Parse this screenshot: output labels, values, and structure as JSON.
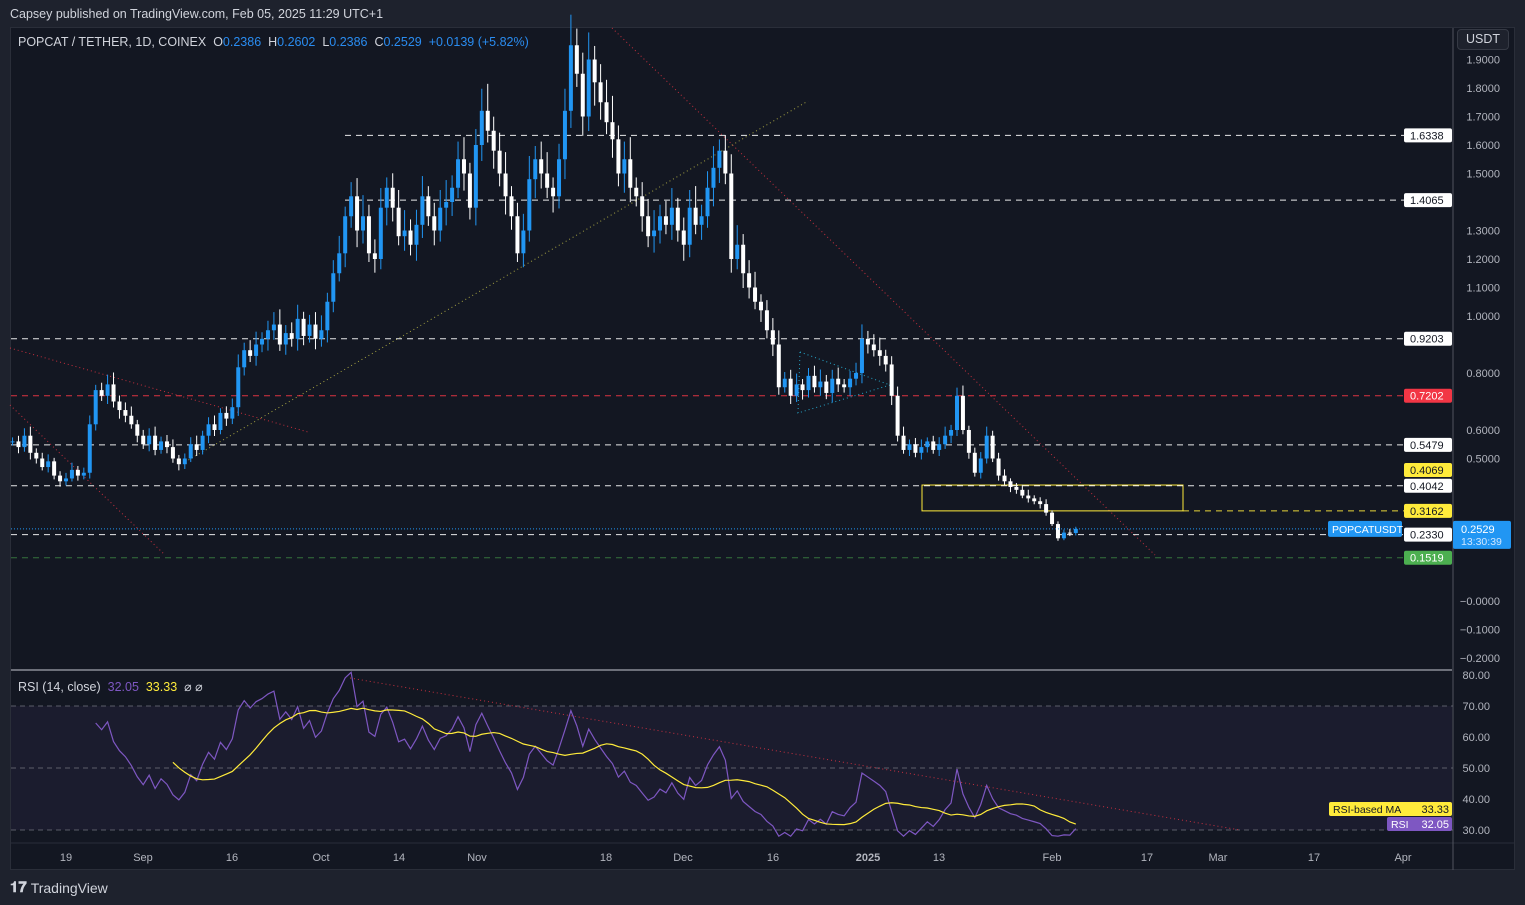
{
  "header": {
    "published": "Capsey published on TradingView.com, Feb 05, 2025 11:29 UTC+1"
  },
  "legend": {
    "symbol": "POPCAT / TETHER, 1D, COINEX",
    "o_label": "O",
    "o": "0.2386",
    "h_label": "H",
    "h": "0.2602",
    "l_label": "L",
    "l": "0.2386",
    "c_label": "C",
    "c": "0.2529",
    "change": "+0.0139 (+5.82%)"
  },
  "currency_button": "USDT",
  "rsi_legend": {
    "title": "RSI (14, close)",
    "rsi": "32.05",
    "ma": "33.33",
    "icons": "⌀ ⌀"
  },
  "price_axis": {
    "ticks": [
      "1.9000",
      "1.8000",
      "1.7000",
      "1.6000",
      "1.5000",
      "1.3000",
      "1.2000",
      "1.1000",
      "1.0000",
      "0.8000",
      "0.6000",
      "0.5000",
      "−0.0000",
      "−0.1000",
      "−0.2000"
    ],
    "values": [
      1.9,
      1.8,
      1.7,
      1.6,
      1.5,
      1.3,
      1.2,
      1.1,
      1.0,
      0.8,
      0.6,
      0.5,
      0,
      -0.1,
      -0.2
    ]
  },
  "levels": [
    {
      "value": "1.6338",
      "color": "#ffffff",
      "text": "#131722"
    },
    {
      "value": "1.4065",
      "color": "#ffffff",
      "text": "#131722"
    },
    {
      "value": "0.9203",
      "color": "#ffffff",
      "text": "#131722"
    },
    {
      "value": "0.7202",
      "color": "#f23645",
      "text": "#ffffff"
    },
    {
      "value": "0.5479",
      "color": "#ffffff",
      "text": "#131722"
    },
    {
      "value": "0.4042",
      "color": "#ffffff",
      "text": "#131722"
    },
    {
      "value": "0.3162",
      "color": "#ffeb3b",
      "text": "#131722"
    },
    {
      "value": "0.2330",
      "color": "#ffffff",
      "text": "#131722"
    },
    {
      "value": "0.1519",
      "color": "#4caf50",
      "text": "#ffffff"
    }
  ],
  "box_top_label": {
    "value": "0.4069",
    "color": "#ffeb3b"
  },
  "last_price": {
    "symbol": "POPCATUSDT",
    "price": "0.2529",
    "countdown": "13:30:39",
    "color": "#2196f3"
  },
  "rsi_axis": {
    "ticks": [
      "80.00",
      "70.00",
      "60.00",
      "50.00",
      "40.00",
      "30.00"
    ],
    "values": [
      80,
      70,
      60,
      50,
      40,
      30
    ]
  },
  "rsi_tags": {
    "ma_label": "RSI-based MA",
    "ma_value": "33.33",
    "rsi_label": "RSI",
    "rsi_value": "32.05",
    "ma_color": "#ffeb3b",
    "rsi_color": "#7e57c2"
  },
  "time_axis": [
    "19",
    "Sep",
    "16",
    "Oct",
    "14",
    "Nov",
    "18",
    "Dec",
    "16",
    "2025",
    "13",
    "Feb",
    "17",
    "Mar",
    "17",
    "Apr"
  ],
  "colors": {
    "up": "#2196f3",
    "down": "#ffffff",
    "background": "#131722"
  },
  "series": {
    "interval": "1D",
    "close": [
      0.56,
      0.54,
      0.58,
      0.52,
      0.5,
      0.47,
      0.49,
      0.44,
      0.42,
      0.43,
      0.46,
      0.44,
      0.45,
      0.62,
      0.74,
      0.72,
      0.76,
      0.7,
      0.67,
      0.65,
      0.62,
      0.58,
      0.55,
      0.58,
      0.53,
      0.56,
      0.54,
      0.5,
      0.48,
      0.5,
      0.55,
      0.53,
      0.58,
      0.62,
      0.6,
      0.66,
      0.64,
      0.68,
      0.82,
      0.88,
      0.86,
      0.9,
      0.92,
      0.95,
      0.97,
      0.9,
      0.94,
      0.92,
      0.99,
      0.93,
      0.97,
      0.92,
      0.95,
      1.05,
      1.15,
      1.22,
      1.35,
      1.42,
      1.3,
      1.35,
      1.22,
      1.2,
      1.38,
      1.45,
      1.38,
      1.28,
      1.3,
      1.25,
      1.32,
      1.42,
      1.35,
      1.3,
      1.38,
      1.4,
      1.45,
      1.55,
      1.5,
      1.38,
      1.6,
      1.72,
      1.65,
      1.58,
      1.5,
      1.42,
      1.35,
      1.22,
      1.3,
      1.48,
      1.55,
      1.5,
      1.45,
      1.42,
      1.55,
      1.72,
      1.95,
      1.85,
      1.7,
      1.9,
      1.82,
      1.75,
      1.68,
      1.62,
      1.5,
      1.55,
      1.45,
      1.42,
      1.35,
      1.28,
      1.3,
      1.35,
      1.32,
      1.38,
      1.3,
      1.25,
      1.38,
      1.32,
      1.35,
      1.45,
      1.52,
      1.58,
      1.5,
      1.2,
      1.25,
      1.15,
      1.1,
      1.05,
      1.02,
      0.95,
      0.9,
      0.75,
      0.78,
      0.72,
      0.76,
      0.74,
      0.79,
      0.75,
      0.77,
      0.73,
      0.78,
      0.76,
      0.75,
      0.78,
      0.8,
      0.92,
      0.9,
      0.88,
      0.86,
      0.83,
      0.72,
      0.58,
      0.53,
      0.55,
      0.52,
      0.54,
      0.56,
      0.53,
      0.55,
      0.58,
      0.6,
      0.72,
      0.6,
      0.52,
      0.45,
      0.5,
      0.58,
      0.5,
      0.44,
      0.42,
      0.4,
      0.39,
      0.37,
      0.36,
      0.35,
      0.34,
      0.31,
      0.27,
      0.22,
      0.24,
      0.2386,
      0.2529
    ]
  },
  "footer": {
    "brand": "TradingView"
  }
}
